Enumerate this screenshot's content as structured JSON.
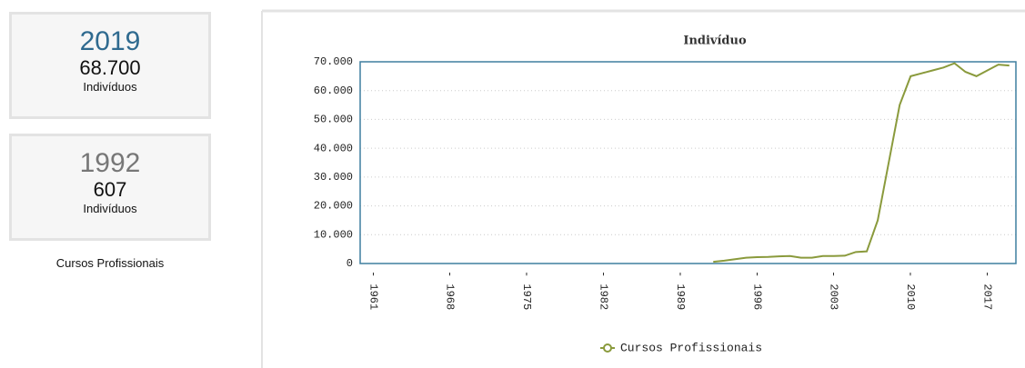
{
  "cards": [
    {
      "year": "2019",
      "value": "68.700",
      "unit": "Indivíduos"
    },
    {
      "year": "1992",
      "value": "607",
      "unit": "Indivíduos"
    }
  ],
  "caption": "Cursos Profissionais",
  "chart_data": {
    "type": "line",
    "title": "Indivíduo",
    "x": [
      1992,
      1993,
      1994,
      1995,
      1996,
      1997,
      1998,
      1999,
      2000,
      2001,
      2002,
      2003,
      2004,
      2005,
      2006,
      2007,
      2008,
      2009,
      2010,
      2011,
      2012,
      2013,
      2014,
      2015,
      2016,
      2017,
      2018,
      2019
    ],
    "series": [
      {
        "name": "Cursos Profissionais",
        "color": "#8a9a3c",
        "values": [
          607,
          1000,
          1500,
          2000,
          2200,
          2300,
          2500,
          2600,
          2000,
          2000,
          2600,
          2600,
          2700,
          4000,
          4200,
          15000,
          35000,
          55000,
          65000,
          66000,
          67000,
          68000,
          69500,
          66500,
          65000,
          67000,
          69000,
          68700
        ]
      }
    ],
    "xlim": [
      1959.8,
      2019.6
    ],
    "xticks": [
      {
        "value": 1961,
        "label": "- 1961"
      },
      {
        "value": 1968,
        "label": "- 1968"
      },
      {
        "value": 1975,
        "label": "- 1975"
      },
      {
        "value": 1982,
        "label": "- 1982"
      },
      {
        "value": 1989,
        "label": "- 1989"
      },
      {
        "value": 1996,
        "label": "- 1996"
      },
      {
        "value": 2003,
        "label": "- 2003"
      },
      {
        "value": 2010,
        "label": "- 2010"
      },
      {
        "value": 2017,
        "label": "- 2017"
      }
    ],
    "ylim": [
      0,
      70000
    ],
    "yticks": [
      0,
      {
        "value": 10000,
        "label": "10.000"
      },
      {
        "value": 20000,
        "label": "20.000"
      },
      {
        "value": 30000,
        "label": "30.000"
      },
      {
        "value": 40000,
        "label": "40.000"
      },
      {
        "value": 50000,
        "label": "50.000"
      },
      {
        "value": 60000,
        "label": "60.000"
      },
      {
        "value": 70000,
        "label": "70.000"
      }
    ],
    "grid": true,
    "legend": "bottom"
  }
}
